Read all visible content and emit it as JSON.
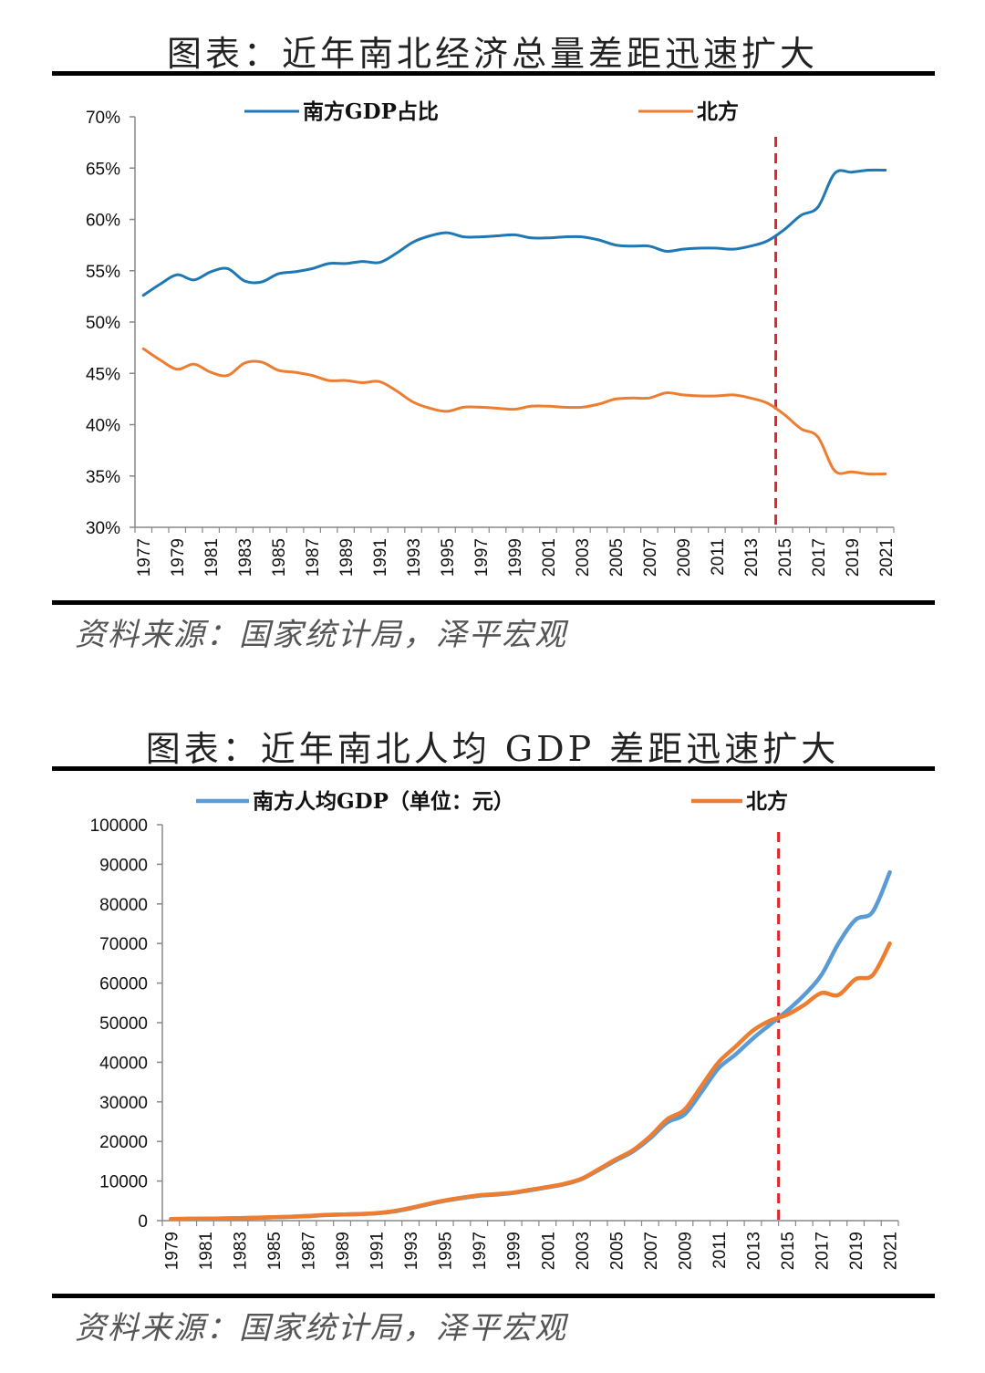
{
  "chart_data": [
    {
      "type": "line",
      "title": "图表：近年南北经济总量差距迅速扩大",
      "source": "资料来源：国家统计局，泽平宏观",
      "ylim": [
        0.3,
        0.7
      ],
      "y_ticks": [
        "30%",
        "35%",
        "40%",
        "45%",
        "50%",
        "55%",
        "60%",
        "65%",
        "70%"
      ],
      "x_ticks": [
        "1977",
        "1979",
        "1981",
        "1983",
        "1985",
        "1987",
        "1989",
        "1991",
        "1993",
        "1995",
        "1997",
        "1999",
        "2001",
        "2003",
        "2005",
        "2007",
        "2009",
        "2011",
        "2013",
        "2015",
        "2017",
        "2019",
        "2021"
      ],
      "x": [
        1977,
        1978,
        1979,
        1980,
        1981,
        1982,
        1983,
        1984,
        1985,
        1986,
        1987,
        1988,
        1989,
        1990,
        1991,
        1992,
        1993,
        1994,
        1995,
        1996,
        1997,
        1998,
        1999,
        2000,
        2001,
        2002,
        2003,
        2004,
        2005,
        2006,
        2007,
        2008,
        2009,
        2010,
        2011,
        2012,
        2013,
        2014,
        2015,
        2016,
        2017,
        2018,
        2019,
        2020,
        2021
      ],
      "vline_x": 2014.5,
      "legend_position": "top",
      "series": [
        {
          "name": "南方GDP占比",
          "color": "#1f78b4",
          "values": [
            0.526,
            0.537,
            0.546,
            0.541,
            0.549,
            0.552,
            0.54,
            0.539,
            0.547,
            0.549,
            0.552,
            0.557,
            0.557,
            0.559,
            0.558,
            0.567,
            0.578,
            0.584,
            0.587,
            0.583,
            0.583,
            0.584,
            0.585,
            0.582,
            0.582,
            0.583,
            0.583,
            0.58,
            0.575,
            0.574,
            0.574,
            0.569,
            0.571,
            0.572,
            0.572,
            0.571,
            0.574,
            0.579,
            0.59,
            0.604,
            0.612,
            0.645,
            0.646,
            0.648,
            0.648
          ]
        },
        {
          "name": "北方",
          "color": "#ed7d31",
          "values": [
            0.474,
            0.463,
            0.454,
            0.459,
            0.451,
            0.448,
            0.46,
            0.461,
            0.453,
            0.451,
            0.448,
            0.443,
            0.443,
            0.441,
            0.442,
            0.433,
            0.422,
            0.416,
            0.413,
            0.417,
            0.417,
            0.416,
            0.415,
            0.418,
            0.418,
            0.417,
            0.417,
            0.42,
            0.425,
            0.426,
            0.426,
            0.431,
            0.429,
            0.428,
            0.428,
            0.429,
            0.426,
            0.421,
            0.41,
            0.396,
            0.388,
            0.355,
            0.354,
            0.352,
            0.352
          ]
        }
      ]
    },
    {
      "type": "line",
      "title": "图表：近年南北人均 GDP 差距迅速扩大",
      "source": "资料来源：国家统计局，泽平宏观",
      "ylim": [
        0,
        100000
      ],
      "y_ticks": [
        "0",
        "10000",
        "20000",
        "30000",
        "40000",
        "50000",
        "60000",
        "70000",
        "80000",
        "90000",
        "100000"
      ],
      "x_ticks": [
        "1979",
        "1981",
        "1983",
        "1985",
        "1987",
        "1989",
        "1991",
        "1993",
        "1995",
        "1997",
        "1999",
        "2001",
        "2003",
        "2005",
        "2007",
        "2009",
        "2011",
        "2013",
        "2015",
        "2017",
        "2019",
        "2021"
      ],
      "x": [
        1979,
        1980,
        1981,
        1982,
        1983,
        1984,
        1985,
        1986,
        1987,
        1988,
        1989,
        1990,
        1991,
        1992,
        1993,
        1994,
        1995,
        1996,
        1997,
        1998,
        1999,
        2000,
        2001,
        2002,
        2003,
        2004,
        2005,
        2006,
        2007,
        2008,
        2009,
        2010,
        2011,
        2012,
        2013,
        2014,
        2015,
        2016,
        2017,
        2018,
        2019,
        2020,
        2021
      ],
      "vline_x": 2014.5,
      "legend_position": "top",
      "series": [
        {
          "name": "南方人均GDP（单位：元）",
          "color": "#5b9bd5",
          "values": [
            400,
            450,
            500,
            550,
            620,
            720,
            850,
            980,
            1150,
            1400,
            1550,
            1650,
            1850,
            2300,
            3100,
            4100,
            5000,
            5700,
            6300,
            6600,
            7000,
            7700,
            8400,
            9200,
            10500,
            12800,
            15200,
            17500,
            20800,
            24800,
            26800,
            32500,
            38500,
            42000,
            46000,
            49500,
            53000,
            57000,
            62000,
            70000,
            76000,
            78000,
            88000
          ]
        },
        {
          "name": "北方",
          "color": "#ed7d31",
          "values": [
            420,
            460,
            510,
            560,
            640,
            740,
            880,
            1000,
            1180,
            1420,
            1560,
            1660,
            1900,
            2400,
            3200,
            4200,
            5100,
            5800,
            6400,
            6700,
            7100,
            7800,
            8500,
            9300,
            10600,
            13000,
            15500,
            17800,
            21300,
            25600,
            28000,
            34000,
            40000,
            44000,
            48000,
            50500,
            52000,
            54500,
            57500,
            57000,
            61000,
            62000,
            70000
          ]
        }
      ]
    }
  ]
}
